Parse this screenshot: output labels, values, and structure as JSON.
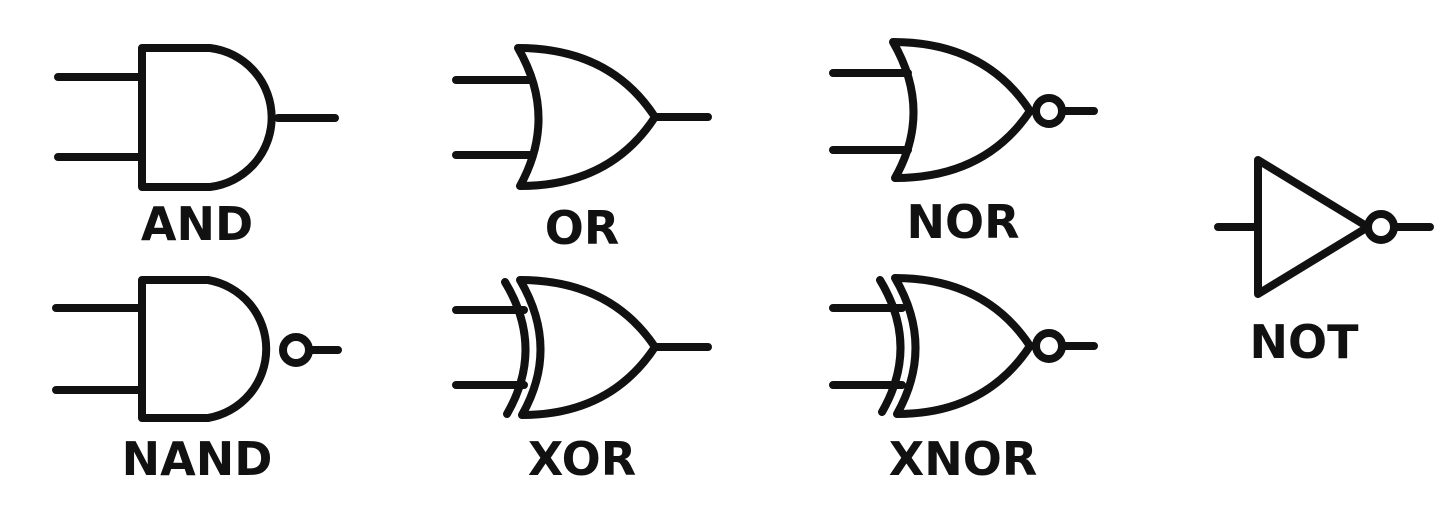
{
  "colors": {
    "stroke": "#111111",
    "background": "#ffffff"
  },
  "gates": {
    "and": {
      "label": "AND",
      "icon": "and-gate-icon"
    },
    "or": {
      "label": "OR",
      "icon": "or-gate-icon"
    },
    "nor": {
      "label": "NOR",
      "icon": "nor-gate-icon"
    },
    "nand": {
      "label": "NAND",
      "icon": "nand-gate-icon"
    },
    "xor": {
      "label": "XOR",
      "icon": "xor-gate-icon"
    },
    "xnor": {
      "label": "XNOR",
      "icon": "xnor-gate-icon"
    },
    "not": {
      "label": "NOT",
      "icon": "not-gate-icon"
    }
  }
}
